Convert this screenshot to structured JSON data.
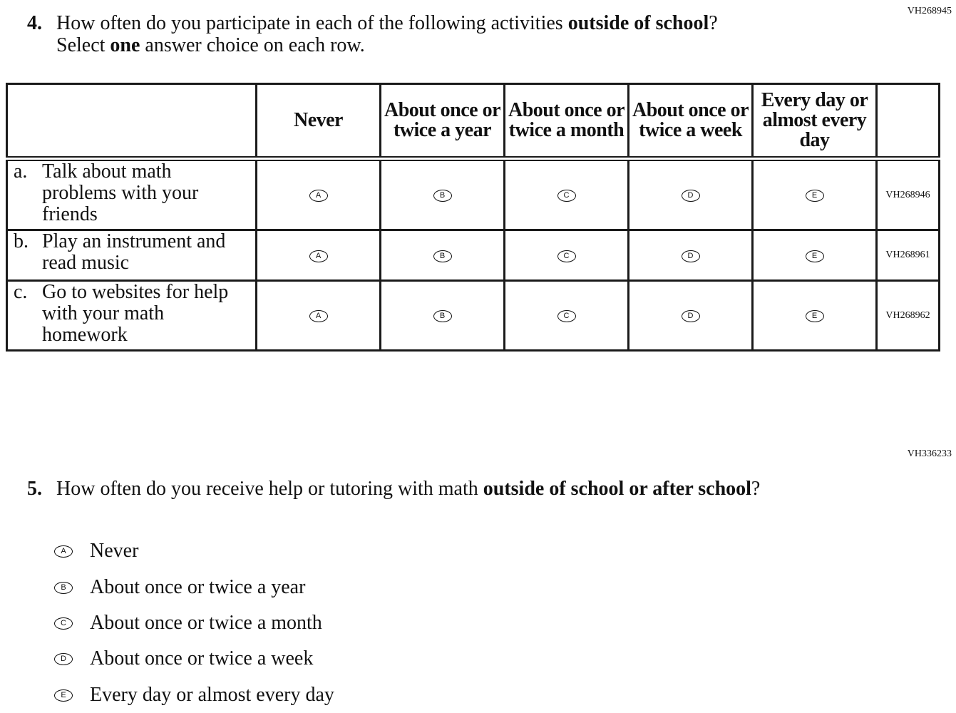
{
  "q4": {
    "code": "VH268945",
    "number": "4.",
    "text_parts": [
      "How often do you participate in each of the following activities ",
      "outside of school",
      "? Select ",
      "one",
      " answer choice on each row."
    ],
    "columns": [
      "Never",
      "About once or twice a year",
      "About once or twice a month",
      "About once or twice a week",
      "Every day or almost every day"
    ],
    "bubbles": [
      "A",
      "B",
      "C",
      "D",
      "E"
    ],
    "rows": [
      {
        "letter": "a.",
        "text": "Talk about math problems with your friends",
        "code": "VH268946"
      },
      {
        "letter": "b.",
        "text": "Play an instrument and read music",
        "code": "VH268961"
      },
      {
        "letter": "c.",
        "text": "Go to websites for help with your math homework",
        "code": "VH268962"
      }
    ]
  },
  "q5": {
    "code": "VH336233",
    "number": "5.",
    "text_parts": [
      "How often do you receive help or tutoring with math ",
      "outside of school or after school",
      "?"
    ],
    "options": [
      {
        "letter": "A",
        "text": "Never"
      },
      {
        "letter": "B",
        "text": "About once or twice a year"
      },
      {
        "letter": "C",
        "text": "About once or twice a month"
      },
      {
        "letter": "D",
        "text": "About once or twice a week"
      },
      {
        "letter": "E",
        "text": "Every day or almost every day"
      }
    ]
  }
}
